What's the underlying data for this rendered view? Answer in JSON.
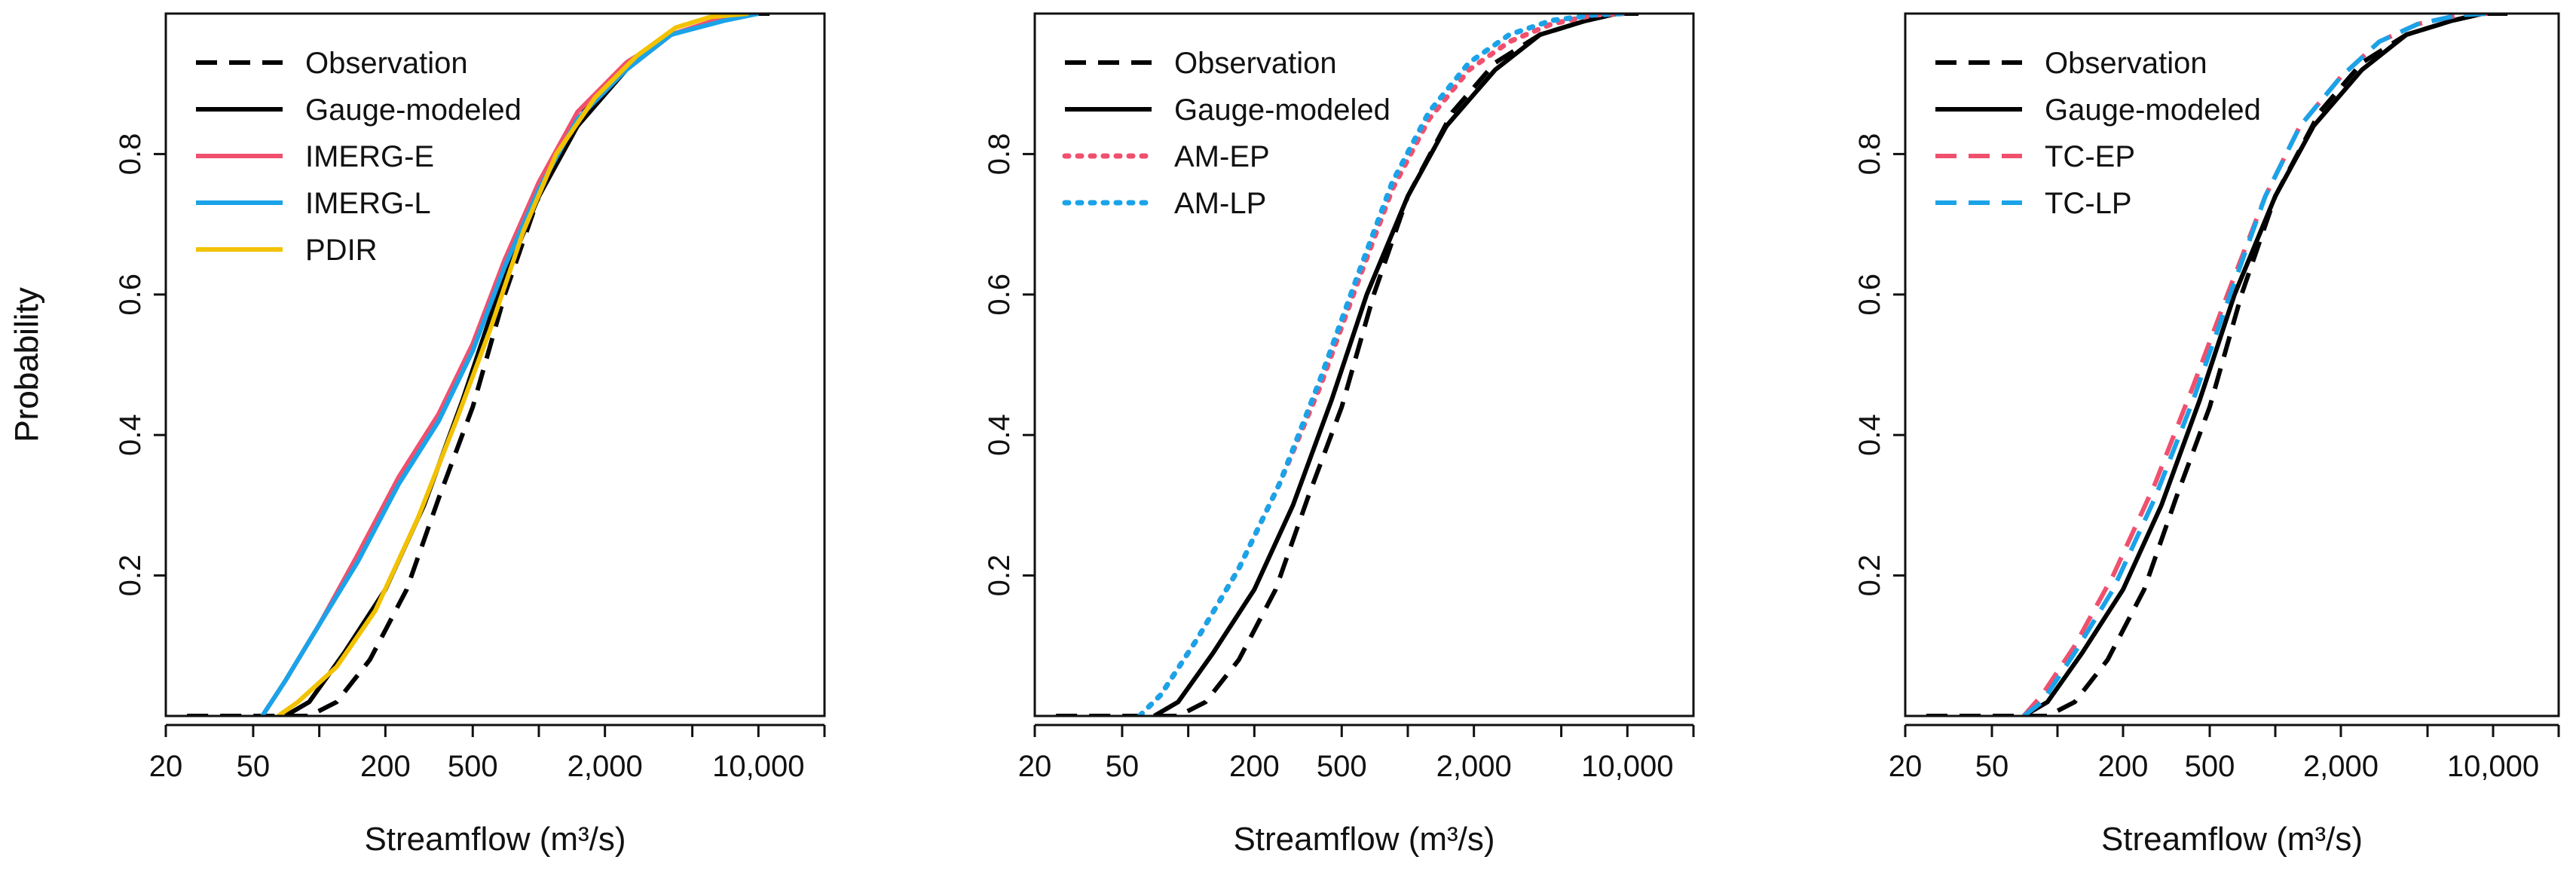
{
  "colors": {
    "observation": "#000000",
    "gauge": "#000000",
    "red": "#f0506e",
    "blue": "#1aa3e8",
    "yellow": "#f2c200"
  },
  "chart_data": [
    {
      "type": "line",
      "xscale": "log",
      "xlabel": "Streamflow (m³/s)",
      "ylabel": "Probability",
      "xlim": [
        20,
        20000
      ],
      "ylim": [
        0,
        1
      ],
      "xticks": [
        20,
        50,
        100,
        200,
        500,
        1000,
        2000,
        5000,
        10000,
        20000
      ],
      "xtick_labels": [
        "20",
        "50",
        "",
        "200",
        "500",
        "",
        "2,000",
        "",
        "10,000",
        ""
      ],
      "yticks": [
        0.2,
        0.4,
        0.6,
        0.8
      ],
      "ytick_labels": [
        "0.2",
        "0.4",
        "0.6",
        "0.8"
      ],
      "legend_position": "top-left",
      "series": [
        {
          "name": "Observation",
          "color": "#000000",
          "style": "dashed",
          "x": [
            25,
            90,
            120,
            170,
            250,
            350,
            500,
            700,
            1000,
            1600,
            2500,
            4000,
            6500,
            9000,
            12000
          ],
          "y": [
            0,
            0,
            0.02,
            0.08,
            0.18,
            0.31,
            0.44,
            0.6,
            0.74,
            0.86,
            0.93,
            0.97,
            0.99,
            1.0,
            1.0
          ]
        },
        {
          "name": "Gauge-modeled",
          "color": "#000000",
          "style": "solid",
          "x": [
            70,
            90,
            130,
            200,
            300,
            450,
            650,
            1000,
            1500,
            2500,
            4000,
            6500,
            9000
          ],
          "y": [
            0,
            0.02,
            0.09,
            0.18,
            0.3,
            0.45,
            0.6,
            0.74,
            0.84,
            0.92,
            0.97,
            0.99,
            1.0
          ]
        },
        {
          "name": "IMERG-E",
          "color": "#f0506e",
          "style": "solid",
          "x": [
            55,
            70,
            100,
            150,
            230,
            350,
            500,
            700,
            1000,
            1500,
            2500,
            4000,
            7000,
            10000
          ],
          "y": [
            0,
            0.05,
            0.13,
            0.23,
            0.34,
            0.43,
            0.53,
            0.65,
            0.76,
            0.86,
            0.93,
            0.97,
            0.995,
            1.0
          ]
        },
        {
          "name": "IMERG-L",
          "color": "#1aa3e8",
          "style": "solid",
          "x": [
            55,
            70,
            100,
            150,
            230,
            350,
            500,
            700,
            1000,
            1500,
            2500,
            4000,
            7000,
            10000
          ],
          "y": [
            0,
            0.05,
            0.13,
            0.22,
            0.33,
            0.42,
            0.52,
            0.64,
            0.75,
            0.85,
            0.92,
            0.97,
            0.99,
            1.0
          ]
        },
        {
          "name": "PDIR",
          "color": "#f2c200",
          "style": "solid",
          "x": [
            65,
            80,
            120,
            180,
            280,
            420,
            600,
            850,
            1200,
            1800,
            2800,
            4200,
            6000,
            9000
          ],
          "y": [
            0,
            0.02,
            0.07,
            0.15,
            0.28,
            0.42,
            0.55,
            0.69,
            0.8,
            0.88,
            0.94,
            0.98,
            0.995,
            1.0
          ]
        }
      ],
      "legend": [
        "Observation",
        "Gauge-modeled",
        "IMERG-E",
        "IMERG-L",
        "PDIR"
      ]
    },
    {
      "type": "line",
      "xscale": "log",
      "xlabel": "Streamflow (m³/s)",
      "ylabel": "Probability",
      "xlim": [
        20,
        20000
      ],
      "ylim": [
        0,
        1
      ],
      "xticks": [
        20,
        50,
        100,
        200,
        500,
        1000,
        2000,
        5000,
        10000,
        20000
      ],
      "xtick_labels": [
        "20",
        "50",
        "",
        "200",
        "500",
        "",
        "2,000",
        "",
        "10,000",
        ""
      ],
      "yticks": [
        0.2,
        0.4,
        0.6,
        0.8
      ],
      "ytick_labels": [
        "0.2",
        "0.4",
        "0.6",
        "0.8"
      ],
      "legend_position": "top-left",
      "series": [
        {
          "name": "Observation",
          "color": "#000000",
          "style": "dashed",
          "x": [
            25,
            90,
            120,
            170,
            250,
            350,
            500,
            700,
            1000,
            1600,
            2500,
            4000,
            6500,
            9000,
            12000
          ],
          "y": [
            0,
            0,
            0.02,
            0.08,
            0.18,
            0.31,
            0.44,
            0.6,
            0.74,
            0.86,
            0.93,
            0.97,
            0.99,
            1.0,
            1.0
          ]
        },
        {
          "name": "Gauge-modeled",
          "color": "#000000",
          "style": "solid",
          "x": [
            70,
            90,
            130,
            200,
            300,
            450,
            650,
            1000,
            1500,
            2500,
            4000,
            6500,
            9000
          ],
          "y": [
            0,
            0.02,
            0.09,
            0.18,
            0.3,
            0.45,
            0.6,
            0.74,
            0.84,
            0.92,
            0.97,
            0.99,
            1.0
          ]
        },
        {
          "name": "AM-EP",
          "color": "#f0506e",
          "style": "dotted",
          "x": [
            60,
            75,
            110,
            170,
            260,
            400,
            580,
            850,
            1250,
            1900,
            2900,
            4500,
            7000,
            9500
          ],
          "y": [
            0,
            0.03,
            0.11,
            0.21,
            0.33,
            0.47,
            0.61,
            0.75,
            0.85,
            0.92,
            0.96,
            0.985,
            0.998,
            1.0
          ]
        },
        {
          "name": "AM-LP",
          "color": "#1aa3e8",
          "style": "dotted",
          "x": [
            60,
            75,
            110,
            170,
            260,
            400,
            580,
            850,
            1250,
            1900,
            2900,
            4500,
            7000,
            9500
          ],
          "y": [
            0,
            0.03,
            0.11,
            0.21,
            0.33,
            0.48,
            0.62,
            0.76,
            0.86,
            0.93,
            0.97,
            0.99,
            0.998,
            1.0
          ]
        }
      ],
      "legend": [
        "Observation",
        "Gauge-modeled",
        "AM-EP",
        "AM-LP"
      ]
    },
    {
      "type": "line",
      "xscale": "log",
      "xlabel": "Streamflow (m³/s)",
      "ylabel": "Probability",
      "xlim": [
        20,
        20000
      ],
      "ylim": [
        0,
        1
      ],
      "xticks": [
        20,
        50,
        100,
        200,
        500,
        1000,
        2000,
        5000,
        10000,
        20000
      ],
      "xtick_labels": [
        "20",
        "50",
        "",
        "200",
        "500",
        "",
        "2,000",
        "",
        "10,000",
        ""
      ],
      "yticks": [
        0.2,
        0.4,
        0.6,
        0.8
      ],
      "ytick_labels": [
        "0.2",
        "0.4",
        "0.6",
        "0.8"
      ],
      "legend_position": "top-left",
      "series": [
        {
          "name": "Observation",
          "color": "#000000",
          "style": "dashed",
          "x": [
            25,
            90,
            120,
            170,
            250,
            350,
            500,
            700,
            1000,
            1600,
            2500,
            4000,
            6500,
            9000,
            12000
          ],
          "y": [
            0,
            0,
            0.02,
            0.08,
            0.18,
            0.31,
            0.44,
            0.6,
            0.74,
            0.86,
            0.93,
            0.97,
            0.99,
            1.0,
            1.0
          ]
        },
        {
          "name": "Gauge-modeled",
          "color": "#000000",
          "style": "solid",
          "x": [
            70,
            90,
            130,
            200,
            300,
            450,
            650,
            1000,
            1500,
            2500,
            4000,
            6500,
            9000
          ],
          "y": [
            0,
            0.02,
            0.09,
            0.18,
            0.3,
            0.45,
            0.6,
            0.74,
            0.84,
            0.92,
            0.97,
            0.99,
            1.0
          ]
        },
        {
          "name": "TC-EP",
          "color": "#f0506e",
          "style": "dashed",
          "x": [
            70,
            85,
            120,
            180,
            280,
            420,
            620,
            900,
            1300,
            2000,
            3000,
            4500,
            7000,
            9500
          ],
          "y": [
            0,
            0.03,
            0.1,
            0.2,
            0.33,
            0.47,
            0.61,
            0.74,
            0.84,
            0.91,
            0.96,
            0.985,
            0.998,
            1.0
          ]
        },
        {
          "name": "TC-LP",
          "color": "#1aa3e8",
          "style": "dashed",
          "x": [
            70,
            85,
            120,
            180,
            280,
            420,
            620,
            900,
            1300,
            2000,
            3000,
            4500,
            7000,
            9500
          ],
          "y": [
            0,
            0.02,
            0.09,
            0.18,
            0.31,
            0.45,
            0.6,
            0.74,
            0.84,
            0.91,
            0.96,
            0.985,
            0.998,
            1.0
          ]
        }
      ],
      "legend": [
        "Observation",
        "Gauge-modeled",
        "TC-EP",
        "TC-LP"
      ]
    }
  ]
}
